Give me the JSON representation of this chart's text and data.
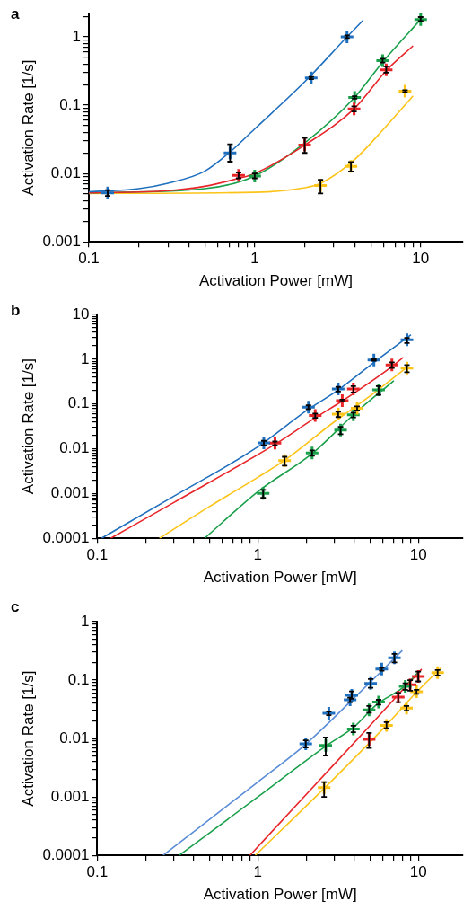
{
  "chart_data": [
    {
      "type": "scatter",
      "title": "a",
      "xlabel": "Activation Power [mW]",
      "ylabel": "Activation Rate [1/s]",
      "log": "xy",
      "grid": false,
      "legend": false,
      "xlim": [
        0.1,
        18
      ],
      "ylim": [
        0.001,
        2.2
      ],
      "xticks": [
        0.1,
        {
          "value": 0.2,
          "label": null
        },
        {
          "value": 0.3,
          "label": null
        },
        {
          "value": 0.4,
          "label": null
        },
        {
          "value": 0.5,
          "label": null
        },
        {
          "value": 0.6,
          "label": null
        },
        {
          "value": 0.7,
          "label": null
        },
        {
          "value": 0.8,
          "label": null
        },
        {
          "value": 0.9,
          "label": null
        },
        1,
        {
          "value": 2,
          "label": null
        },
        {
          "value": 3,
          "label": null
        },
        {
          "value": 4,
          "label": null
        },
        {
          "value": 5,
          "label": null
        },
        {
          "value": 6,
          "label": null
        },
        {
          "value": 7,
          "label": null
        },
        {
          "value": 8,
          "label": null
        },
        {
          "value": 9,
          "label": null
        },
        10
      ],
      "yticks": [
        0.001,
        {
          "value": 0.002,
          "label": null
        },
        {
          "value": 0.003,
          "label": null
        },
        {
          "value": 0.004,
          "label": null
        },
        {
          "value": 0.005,
          "label": null
        },
        {
          "value": 0.006,
          "label": null
        },
        {
          "value": 0.007,
          "label": null
        },
        {
          "value": 0.008,
          "label": null
        },
        {
          "value": 0.009,
          "label": null
        },
        0.01,
        {
          "value": 0.02,
          "label": null
        },
        {
          "value": 0.03,
          "label": null
        },
        {
          "value": 0.04,
          "label": null
        },
        {
          "value": 0.05,
          "label": null
        },
        {
          "value": 0.06,
          "label": null
        },
        {
          "value": 0.07,
          "label": null
        },
        {
          "value": 0.08,
          "label": null
        },
        {
          "value": 0.09,
          "label": null
        },
        0.1,
        {
          "value": 0.2,
          "label": null
        },
        {
          "value": 0.3,
          "label": null
        },
        {
          "value": 0.4,
          "label": null
        },
        {
          "value": 0.5,
          "label": null
        },
        {
          "value": 0.6,
          "label": null
        },
        {
          "value": 0.7,
          "label": null
        },
        {
          "value": 0.8,
          "label": null
        },
        {
          "value": 0.9,
          "label": null
        },
        1,
        {
          "value": 2,
          "label": null
        }
      ],
      "series": [
        {
          "type": "line",
          "color": "#1f6fbf",
          "x": [
            0.1,
            0.2,
            0.3,
            0.5,
            0.7,
            1,
            2,
            3.6,
            4.5
          ],
          "values": [
            0.0054,
            0.006,
            0.0072,
            0.0108,
            0.02,
            0.045,
            0.22,
            1.0,
            1.75
          ]
        },
        {
          "type": "line",
          "color": "#e8262a",
          "x": [
            0.1,
            0.3,
            0.5,
            0.8,
            1,
            2,
            4,
            6.2,
            9
          ],
          "values": [
            0.0052,
            0.0056,
            0.0065,
            0.0085,
            0.01,
            0.026,
            0.09,
            0.32,
            0.74
          ]
        },
        {
          "type": "line",
          "color": "#1aa04a",
          "x": [
            0.1,
            0.5,
            1,
            2,
            4,
            6,
            10
          ],
          "values": [
            0.0052,
            0.006,
            0.0092,
            0.028,
            0.13,
            0.45,
            1.8
          ]
        },
        {
          "type": "line",
          "color": "#fcc419",
          "x": [
            0.1,
            1,
            2,
            2.5,
            4,
            6,
            9
          ],
          "values": [
            0.0051,
            0.0053,
            0.0062,
            0.0072,
            0.016,
            0.045,
            0.137
          ]
        },
        {
          "type": "scatter",
          "marker": "cross",
          "color": "#1f6fbf",
          "x": [
            0.13,
            0.71,
            2.19,
            3.6
          ],
          "values": [
            0.0052,
            0.02,
            0.25,
            1.0
          ],
          "errors": [
            [
              0.0047,
              0.0057
            ],
            [
              0.0149,
              0.0267
            ],
            [
              0.24,
              0.26
            ],
            [
              0.96,
              1.05
            ]
          ]
        },
        {
          "type": "scatter",
          "marker": "cross",
          "color": "#e8262a",
          "x": [
            0.8,
            2.0,
            3.97,
            6.2
          ],
          "values": [
            0.0094,
            0.026,
            0.088,
            0.33
          ],
          "errors": [
            [
              0.0085,
              0.0103
            ],
            [
              0.02,
              0.033
            ],
            [
              0.081,
              0.096
            ],
            [
              0.3,
              0.37
            ]
          ]
        },
        {
          "type": "scatter",
          "marker": "cross",
          "color": "#1aa04a",
          "x": [
            1.0,
            4.0,
            5.9,
            10
          ],
          "values": [
            0.0092,
            0.13,
            0.45,
            1.8
          ],
          "errors": [
            [
              0.0085,
              0.01
            ],
            [
              0.125,
              0.135
            ],
            [
              0.42,
              0.48
            ],
            [
              1.7,
              1.95
            ]
          ]
        },
        {
          "type": "scatter",
          "marker": "cross",
          "color": "#fcc419",
          "x": [
            2.49,
            3.8,
            8.05
          ],
          "values": [
            0.0067,
            0.0127,
            0.16
          ],
          "errors": [
            [
              0.0051,
              0.0081
            ],
            [
              0.0107,
              0.0147
            ],
            [
              0.155,
              0.166
            ]
          ]
        }
      ]
    },
    {
      "type": "scatter",
      "title": "b",
      "xlabel": "Activation Power [mW]",
      "ylabel": "Activation Rate [1/s]",
      "log": "xy",
      "grid": false,
      "legend": false,
      "xlim": [
        0.1,
        19
      ],
      "ylim": [
        0.0001,
        10
      ],
      "xticks": [
        0.1,
        {
          "value": 0.2,
          "label": null
        },
        {
          "value": 0.3,
          "label": null
        },
        {
          "value": 0.4,
          "label": null
        },
        {
          "value": 0.5,
          "label": null
        },
        {
          "value": 0.6,
          "label": null
        },
        {
          "value": 0.7,
          "label": null
        },
        {
          "value": 0.8,
          "label": null
        },
        {
          "value": 0.9,
          "label": null
        },
        1,
        {
          "value": 2,
          "label": null
        },
        {
          "value": 3,
          "label": null
        },
        {
          "value": 4,
          "label": null
        },
        {
          "value": 5,
          "label": null
        },
        {
          "value": 6,
          "label": null
        },
        {
          "value": 7,
          "label": null
        },
        {
          "value": 8,
          "label": null
        },
        {
          "value": 9,
          "label": null
        },
        10
      ],
      "yticks": [
        0.0001,
        {
          "value": 0.0002,
          "label": null
        },
        {
          "value": 0.0003,
          "label": null
        },
        {
          "value": 0.0004,
          "label": null
        },
        {
          "value": 0.0005,
          "label": null
        },
        {
          "value": 0.0006,
          "label": null
        },
        {
          "value": 0.0007,
          "label": null
        },
        {
          "value": 0.0008,
          "label": null
        },
        {
          "value": 0.0009,
          "label": null
        },
        0.001,
        {
          "value": 0.002,
          "label": null
        },
        {
          "value": 0.003,
          "label": null
        },
        {
          "value": 0.004,
          "label": null
        },
        {
          "value": 0.005,
          "label": null
        },
        {
          "value": 0.006,
          "label": null
        },
        {
          "value": 0.007,
          "label": null
        },
        {
          "value": 0.008,
          "label": null
        },
        {
          "value": 0.009,
          "label": null
        },
        0.01,
        {
          "value": 0.02,
          "label": null
        },
        {
          "value": 0.03,
          "label": null
        },
        {
          "value": 0.04,
          "label": null
        },
        {
          "value": 0.05,
          "label": null
        },
        {
          "value": 0.06,
          "label": null
        },
        {
          "value": 0.07,
          "label": null
        },
        {
          "value": 0.08,
          "label": null
        },
        {
          "value": 0.09,
          "label": null
        },
        0.1,
        {
          "value": 0.2,
          "label": null
        },
        {
          "value": 0.3,
          "label": null
        },
        {
          "value": 0.4,
          "label": null
        },
        {
          "value": 0.5,
          "label": null
        },
        {
          "value": 0.6,
          "label": null
        },
        {
          "value": 0.7,
          "label": null
        },
        {
          "value": 0.8,
          "label": null
        },
        {
          "value": 0.9,
          "label": null
        },
        1,
        {
          "value": 2,
          "label": null
        },
        {
          "value": 3,
          "label": null
        },
        {
          "value": 4,
          "label": null
        },
        {
          "value": 5,
          "label": null
        },
        {
          "value": 6,
          "label": null
        },
        {
          "value": 7,
          "label": null
        },
        {
          "value": 8,
          "label": null
        },
        {
          "value": 9,
          "label": null
        },
        10
      ],
      "series": [
        {
          "type": "line",
          "color": "#1f6fbf",
          "x": [
            0.106,
            0.3,
            1,
            2,
            3.2,
            5.3,
            9
          ],
          "values": [
            0.0001,
            0.00087,
            0.011,
            0.07,
            0.21,
            0.85,
            3.5
          ]
        },
        {
          "type": "line",
          "color": "#e8262a",
          "x": [
            0.121,
            0.3,
            1.3,
            2.3,
            3.4,
            6.9,
            8.06
          ],
          "values": [
            0.0001,
            0.00063,
            0.013,
            0.05,
            0.12,
            0.7,
            1.1
          ]
        },
        {
          "type": "line",
          "color": "#fcc419",
          "x": [
            0.244,
            0.5,
            1,
            1.47,
            3,
            5,
            8.5
          ],
          "values": [
            0.0001,
            0.00051,
            0.0023,
            0.0055,
            0.04,
            0.15,
            0.66
          ]
        },
        {
          "type": "line",
          "color": "#1aa04a",
          "x": [
            0.467,
            1,
            2.2,
            4,
            7.04
          ],
          "values": [
            0.0001,
            0.0011,
            0.008,
            0.06,
            0.33
          ]
        },
        {
          "type": "scatter",
          "marker": "cross",
          "color": "#1f6fbf",
          "x": [
            1.09,
            2.07,
            3.17,
            5.29,
            8.5
          ],
          "values": [
            0.0135,
            0.085,
            0.216,
            0.96,
            2.7
          ],
          "errors": [
            [
              0.012,
              0.015
            ],
            [
              0.077,
              0.093
            ],
            [
              0.19,
              0.24
            ],
            [
              0.92,
              1.0
            ],
            [
              2.3,
              3.0
            ]
          ]
        },
        {
          "type": "scatter",
          "marker": "cross",
          "color": "#e8262a",
          "x": [
            1.28,
            2.28,
            3.36,
            3.94,
            6.85
          ],
          "values": [
            0.0133,
            0.055,
            0.119,
            0.216,
            0.74
          ],
          "errors": [
            [
              0.012,
              0.0145
            ],
            [
              0.049,
              0.061
            ],
            [
              0.113,
              0.125
            ],
            [
              0.18,
              0.25
            ],
            [
              0.64,
              0.85
            ]
          ]
        },
        {
          "type": "scatter",
          "marker": "cross",
          "color": "#fcc419",
          "x": [
            1.47,
            3.17,
            4.16,
            8.5
          ],
          "values": [
            0.0054,
            0.059,
            0.08,
            0.63
          ],
          "errors": [
            [
              0.0042,
              0.0066
            ],
            [
              0.051,
              0.067
            ],
            [
              0.072,
              0.088
            ],
            [
              0.51,
              0.74
            ]
          ]
        },
        {
          "type": "scatter",
          "marker": "cross",
          "color": "#1aa04a",
          "x": [
            1.08,
            2.18,
            3.28,
            3.94,
            5.66
          ],
          "values": [
            0.001,
            0.008,
            0.026,
            0.057,
            0.207
          ],
          "errors": [
            [
              0.0008,
              0.0012
            ],
            [
              0.007,
              0.0092
            ],
            [
              0.021,
              0.031
            ],
            [
              0.05,
              0.064
            ],
            [
              0.16,
              0.25
            ]
          ]
        }
      ]
    },
    {
      "type": "scatter",
      "title": "c",
      "xlabel": "Activation Power [mW]",
      "ylabel": "Activation Rate [1/s]",
      "log": "xy",
      "grid": false,
      "legend": false,
      "xlim": [
        0.1,
        19
      ],
      "ylim": [
        0.0001,
        1
      ],
      "xticks": [
        0.1,
        {
          "value": 0.2,
          "label": null
        },
        {
          "value": 0.3,
          "label": null
        },
        {
          "value": 0.4,
          "label": null
        },
        {
          "value": 0.5,
          "label": null
        },
        {
          "value": 0.6,
          "label": null
        },
        {
          "value": 0.7,
          "label": null
        },
        {
          "value": 0.8,
          "label": null
        },
        {
          "value": 0.9,
          "label": null
        },
        1,
        {
          "value": 2,
          "label": null
        },
        {
          "value": 3,
          "label": null
        },
        {
          "value": 4,
          "label": null
        },
        {
          "value": 5,
          "label": null
        },
        {
          "value": 6,
          "label": null
        },
        {
          "value": 7,
          "label": null
        },
        {
          "value": 8,
          "label": null
        },
        {
          "value": 9,
          "label": null
        },
        10
      ],
      "yticks": [
        0.0001,
        {
          "value": 0.0002,
          "label": null
        },
        {
          "value": 0.0003,
          "label": null
        },
        {
          "value": 0.0004,
          "label": null
        },
        {
          "value": 0.0005,
          "label": null
        },
        {
          "value": 0.0006,
          "label": null
        },
        {
          "value": 0.0007,
          "label": null
        },
        {
          "value": 0.0008,
          "label": null
        },
        {
          "value": 0.0009,
          "label": null
        },
        0.001,
        {
          "value": 0.002,
          "label": null
        },
        {
          "value": 0.003,
          "label": null
        },
        {
          "value": 0.004,
          "label": null
        },
        {
          "value": 0.005,
          "label": null
        },
        {
          "value": 0.006,
          "label": null
        },
        {
          "value": 0.007,
          "label": null
        },
        {
          "value": 0.008,
          "label": null
        },
        {
          "value": 0.009,
          "label": null
        },
        0.01,
        {
          "value": 0.02,
          "label": null
        },
        {
          "value": 0.03,
          "label": null
        },
        {
          "value": 0.04,
          "label": null
        },
        {
          "value": 0.05,
          "label": null
        },
        {
          "value": 0.06,
          "label": null
        },
        {
          "value": 0.07,
          "label": null
        },
        {
          "value": 0.08,
          "label": null
        },
        {
          "value": 0.09,
          "label": null
        },
        0.1,
        {
          "value": 0.2,
          "label": null
        },
        {
          "value": 0.3,
          "label": null
        },
        {
          "value": 0.4,
          "label": null
        },
        {
          "value": 0.5,
          "label": null
        },
        {
          "value": 0.6,
          "label": null
        },
        {
          "value": 0.7,
          "label": null
        },
        {
          "value": 0.8,
          "label": null
        },
        {
          "value": 0.9,
          "label": null
        },
        1
      ],
      "series": [
        {
          "type": "line",
          "color": "#5b8dd6",
          "x": [
            0.257,
            1,
            2,
            4,
            7.95
          ],
          "values": [
            0.0001,
            0.0018,
            0.0081,
            0.05,
            0.32
          ]
        },
        {
          "type": "line",
          "color": "#1aa04a",
          "x": [
            0.324,
            1,
            2.65,
            4,
            5.5,
            8.3,
            10
          ],
          "values": [
            0.0001,
            0.001,
            0.0074,
            0.016,
            0.038,
            0.08,
            0.138
          ]
        },
        {
          "type": "line",
          "color": "#e8262a",
          "x": [
            0.893,
            2,
            5,
            10.5
          ],
          "values": [
            0.0001,
            0.0011,
            0.0166,
            0.154
          ]
        },
        {
          "type": "line",
          "color": "#fcc419",
          "x": [
            0.964,
            2.59,
            6.34,
            9.75,
            13.9
          ],
          "values": [
            0.0001,
            0.0014,
            0.017,
            0.062,
            0.163
          ]
        },
        {
          "type": "scatter",
          "marker": "cross",
          "color": "#1f6fbf",
          "x": [
            1.99,
            2.77,
            3.76,
            3.85,
            5.05,
            5.92,
            7.1
          ],
          "values": [
            0.0081,
            0.027,
            0.046,
            0.055,
            0.088,
            0.154,
            0.24
          ],
          "errors": [
            [
              0.007,
              0.0093
            ],
            [
              0.025,
              0.029
            ],
            [
              0.042,
              0.05
            ],
            [
              0.048,
              0.064
            ],
            [
              0.074,
              0.104
            ],
            [
              0.145,
              0.163
            ],
            [
              0.2,
              0.28
            ]
          ]
        },
        {
          "type": "scatter",
          "marker": "cross",
          "color": "#1aa04a",
          "x": [
            2.65,
            3.94,
            4.94,
            5.66,
            8.3
          ],
          "values": [
            0.0076,
            0.0146,
            0.031,
            0.042,
            0.078
          ],
          "errors": [
            [
              0.0051,
              0.0104
            ],
            [
              0.0128,
              0.0165
            ],
            [
              0.0277,
              0.036
            ],
            [
              0.038,
              0.046
            ],
            [
              0.068,
              0.088
            ]
          ]
        },
        {
          "type": "scatter",
          "marker": "cross",
          "color": "#e8262a",
          "x": [
            4.94,
            7.5,
            8.9,
            10
          ],
          "values": [
            0.0097,
            0.051,
            0.083,
            0.115
          ],
          "errors": [
            [
              0.0069,
              0.0125
            ],
            [
              0.042,
              0.06
            ],
            [
              0.066,
              0.1
            ],
            [
              0.095,
              0.14
            ]
          ]
        },
        {
          "type": "scatter",
          "marker": "cross",
          "color": "#fcc419",
          "x": [
            2.59,
            6.34,
            8.45,
            9.75,
            13.2
          ],
          "values": [
            0.00144,
            0.0168,
            0.033,
            0.063,
            0.134
          ],
          "errors": [
            [
              0.001,
              0.0018
            ],
            [
              0.015,
              0.019
            ],
            [
              0.03,
              0.036
            ],
            [
              0.058,
              0.068
            ],
            [
              0.12,
              0.148
            ]
          ]
        }
      ]
    }
  ]
}
